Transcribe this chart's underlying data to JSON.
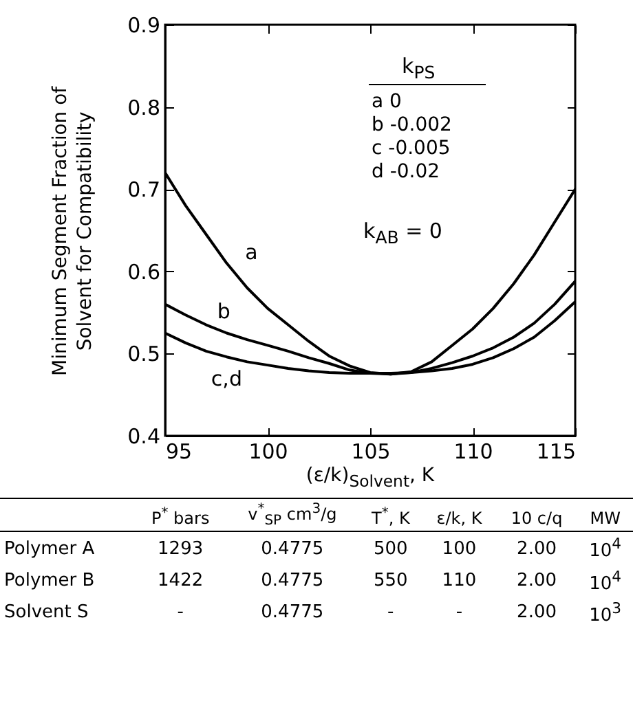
{
  "chart_data": {
    "type": "line",
    "xlabel": "(ε/k)$_{Solvent}$, K",
    "ylabel": "Minimum Segment Fraction of Solvent for Compatibility",
    "x": [
      95,
      96,
      97,
      98,
      99,
      100,
      101,
      102,
      103,
      104,
      105,
      106,
      107,
      108,
      109,
      110,
      111,
      112,
      113,
      114,
      115
    ],
    "series": [
      {
        "name": "a",
        "color": "#000000",
        "values": [
          0.72,
          0.68,
          0.645,
          0.61,
          0.58,
          0.555,
          0.535,
          0.515,
          0.497,
          0.485,
          0.477,
          0.475,
          0.478,
          0.49,
          0.51,
          0.53,
          0.555,
          0.585,
          0.62,
          0.66,
          0.7
        ]
      },
      {
        "name": "b",
        "color": "#000000",
        "values": [
          0.56,
          0.547,
          0.535,
          0.525,
          0.517,
          0.51,
          0.503,
          0.495,
          0.488,
          0.48,
          0.476,
          0.475,
          0.477,
          0.482,
          0.489,
          0.497,
          0.507,
          0.52,
          0.537,
          0.56,
          0.588
        ]
      },
      {
        "name": "c,d",
        "color": "#000000",
        "values": [
          0.525,
          0.513,
          0.503,
          0.496,
          0.49,
          0.486,
          0.482,
          0.479,
          0.477,
          0.476,
          0.476,
          0.476,
          0.477,
          0.479,
          0.482,
          0.487,
          0.495,
          0.506,
          0.52,
          0.54,
          0.563
        ]
      }
    ],
    "xlim": [
      95,
      115
    ],
    "xticks": [
      95,
      100,
      105,
      110,
      115
    ],
    "ylim": [
      0.4,
      0.9
    ],
    "yticks": [
      0.4,
      0.5,
      0.6,
      0.7,
      0.8,
      0.9
    ],
    "grid": false,
    "line_style": "solid",
    "marker": "none",
    "annotations": [
      "k$_{PS}$",
      "a 0",
      "b -0.002",
      "c -0.005",
      "d -0.02",
      "k$_{AB}$ = 0",
      "P$^{*}$ bars  v$^{*}$$_{SP}$ cm$^{3}$/g  T$^{*}$, K  ε/k, K  10 c/q  MW",
      "Polymer A  1293  0.4775  500  100  2.00  10$^{4}$",
      "Polymer B  1422  0.4775  550  110  2.00  10$^{4}$",
      "Solvent S  -  0.4775  -  -  2.00  10$^{3}$"
    ]
  }
}
